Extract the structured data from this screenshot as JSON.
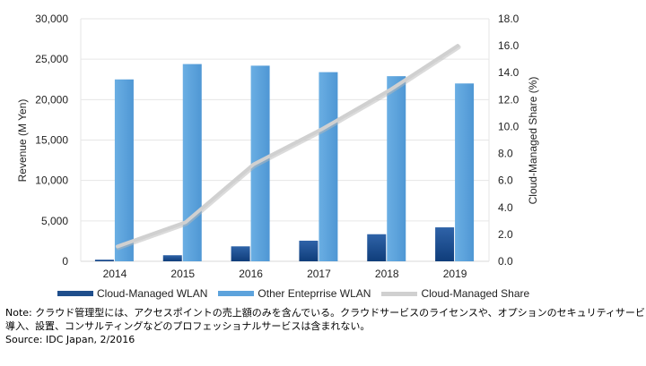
{
  "chart_data": {
    "type": "bar",
    "title": "",
    "categories": [
      "2014",
      "2015",
      "2016",
      "2017",
      "2018",
      "2019"
    ],
    "series": [
      {
        "name": "Cloud-Managed WLAN",
        "type": "bar",
        "axis": "left",
        "color": "#1f4e8c",
        "values": [
          200,
          750,
          1850,
          2550,
          3350,
          4200
        ]
      },
      {
        "name": "Other Enteprrise WLAN",
        "type": "bar",
        "axis": "left",
        "color": "#5da3dc",
        "values": [
          22500,
          24400,
          24200,
          23400,
          22900,
          22000
        ]
      },
      {
        "name": "Cloud-Managed Share",
        "type": "line",
        "axis": "right",
        "color": "#d0d0d0",
        "values": [
          1.1,
          2.9,
          7.2,
          9.8,
          12.7,
          16.0
        ]
      }
    ],
    "xlabel": "",
    "ylabel": "Revenue (M Yen)",
    "y2label": "Cloud-Managed Share (%)",
    "ylim": [
      0,
      30000
    ],
    "y2lim": [
      0,
      18
    ],
    "yticks": [
      "0",
      "5,000",
      "10,000",
      "15,000",
      "20,000",
      "25,000",
      "30,000"
    ],
    "y2ticks": [
      "0.0",
      "2.0",
      "4.0",
      "6.0",
      "8.0",
      "10.0",
      "12.0",
      "14.0",
      "16.0",
      "18.0"
    ],
    "grid": true,
    "legend_position": "bottom"
  },
  "legend": {
    "items": [
      {
        "label": "Cloud-Managed WLAN",
        "color": "#1f4e8c"
      },
      {
        "label": "Other Enteprrise WLAN",
        "color": "#5da3dc"
      },
      {
        "label": "Cloud-Managed Share",
        "color": "#d0d0d0"
      }
    ]
  },
  "note": {
    "line1": "Note: クラウド管理型には、アクセスポイントの売上額のみを含んでいる。クラウドサービスのライセンスや、オプションのセキュリティサービス、",
    "line2": "導入、設置、コンサルティングなどのプロフェッショナルサービスは含まれない。",
    "source": "Source: IDC Japan, 2/2016"
  }
}
